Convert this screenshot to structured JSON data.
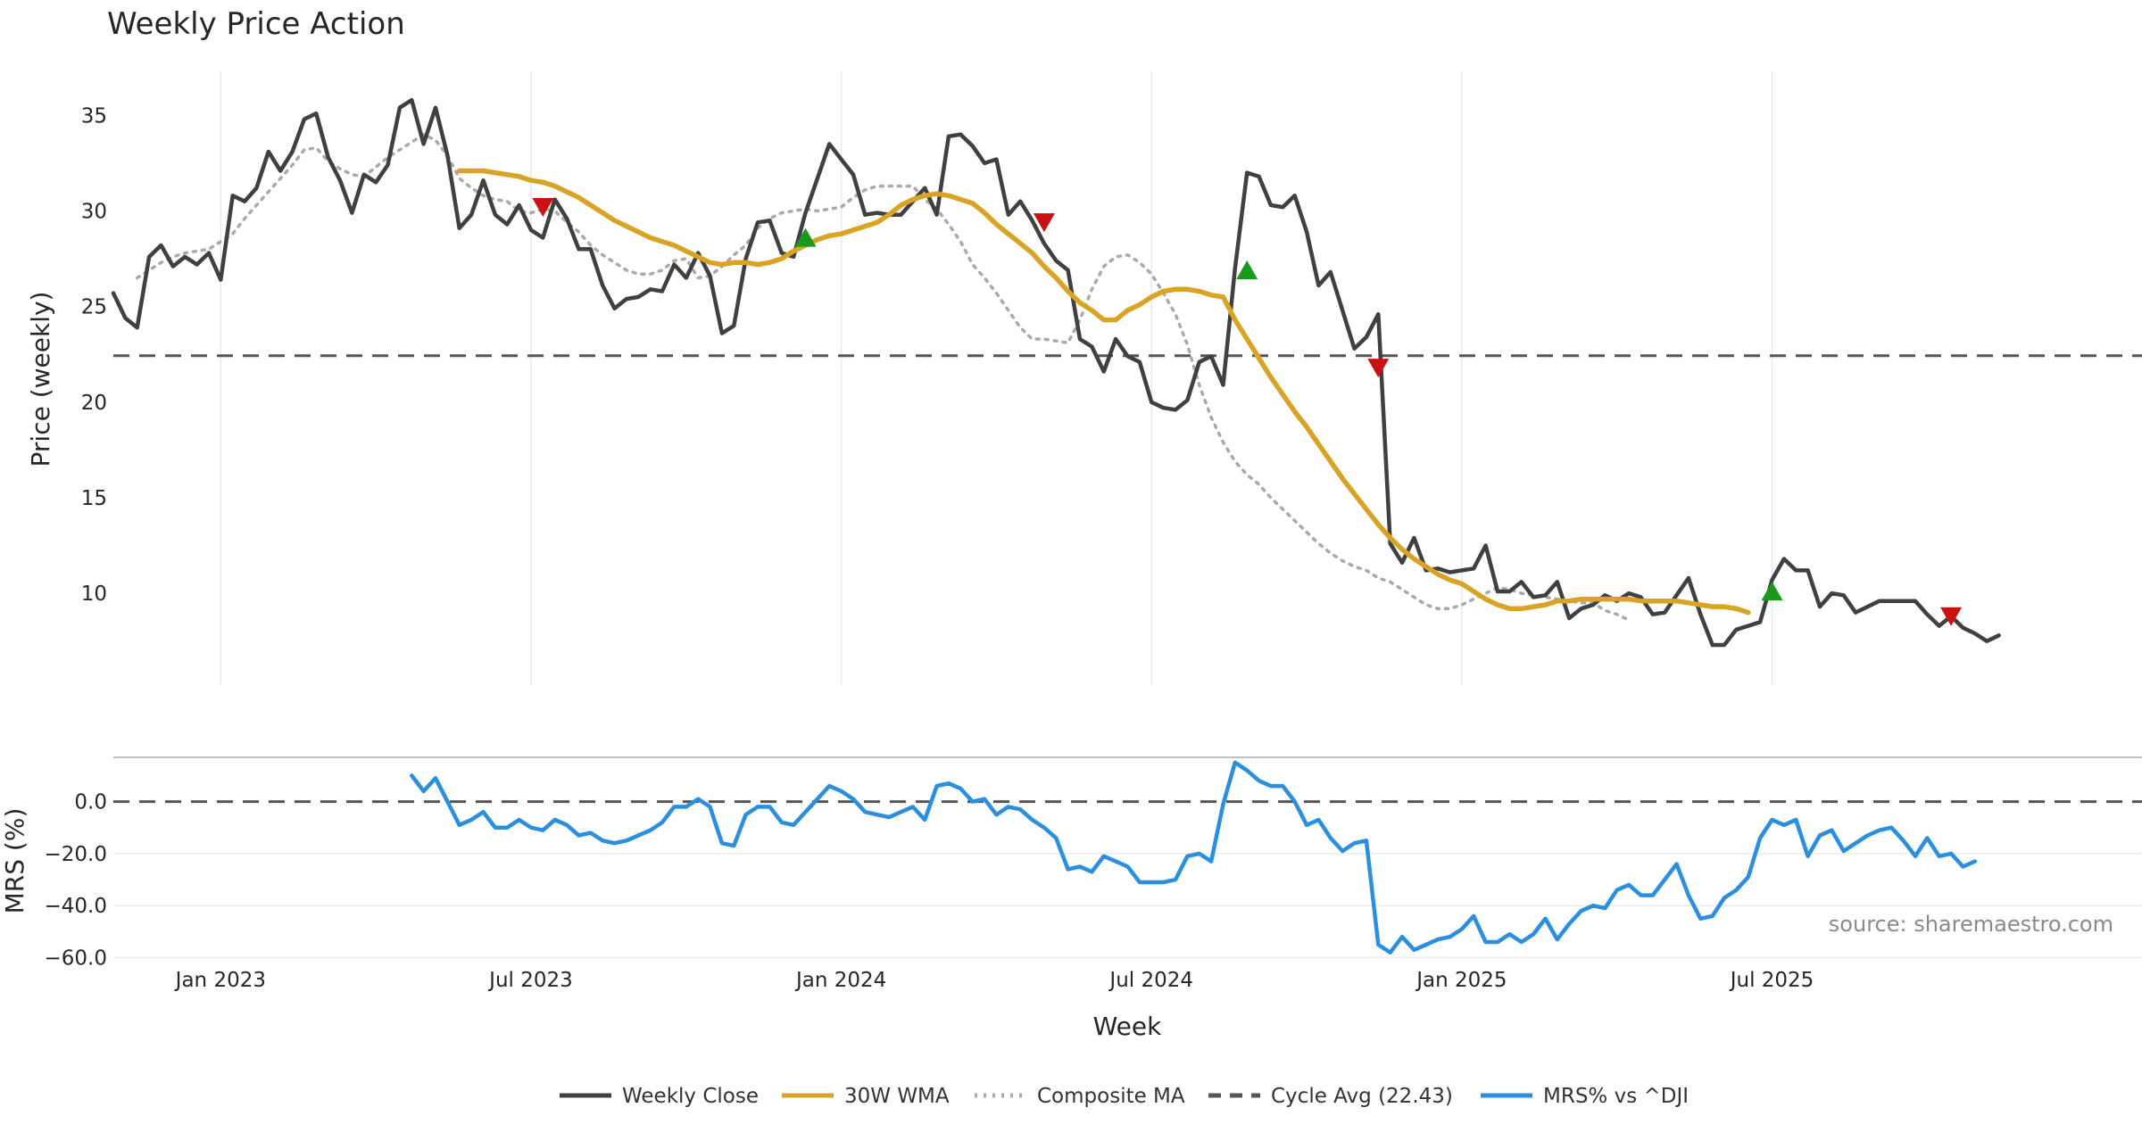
{
  "chart_data": [
    {
      "id": "price",
      "type": "line",
      "title": "Weekly Price Action",
      "ylabel": "Price (weekly)",
      "ylim": [
        5.2,
        37.3
      ],
      "yticks": [
        10,
        15,
        20,
        25,
        30,
        35
      ],
      "ytick_labels": [
        "10",
        "15",
        "20",
        "25",
        "30",
        "35"
      ],
      "week_range": [
        0,
        170
      ],
      "xgrid_weeks": [
        9,
        35,
        61,
        87,
        113,
        139
      ],
      "series": [
        {
          "name": "Weekly Close",
          "color": "#404040",
          "style": "solid",
          "values": [
            25.7,
            24.4,
            23.9,
            27.6,
            28.2,
            27.1,
            27.6,
            27.2,
            27.8,
            26.4,
            30.8,
            30.5,
            31.2,
            33.1,
            32.1,
            33.1,
            34.8,
            35.1,
            32.8,
            31.6,
            29.9,
            31.9,
            31.5,
            32.4,
            35.4,
            35.8,
            33.5,
            35.4,
            32.9,
            29.1,
            29.8,
            31.6,
            29.8,
            29.3,
            30.3,
            29.0,
            28.6,
            30.6,
            29.6,
            28.0,
            28.0,
            26.1,
            24.9,
            25.4,
            25.5,
            25.9,
            25.8,
            27.2,
            26.5,
            27.8,
            26.6,
            23.6,
            24.0,
            27.5,
            29.4,
            29.5,
            27.8,
            27.6,
            29.9,
            31.7,
            33.5,
            32.7,
            31.9,
            29.8,
            29.9,
            29.8,
            29.8,
            30.5,
            31.2,
            29.8,
            33.9,
            34.0,
            33.4,
            32.5,
            32.7,
            29.8,
            30.5,
            29.5,
            28.3,
            27.4,
            26.9,
            23.3,
            22.9,
            21.6,
            23.3,
            22.4,
            22.1,
            20.0,
            19.7,
            19.6,
            20.1,
            22.1,
            22.4,
            20.9,
            27.0,
            32.0,
            31.8,
            30.3,
            30.2,
            30.8,
            28.9,
            26.1,
            26.8,
            24.8,
            22.8,
            23.4,
            24.6,
            12.6,
            11.6,
            12.9,
            11.2,
            11.3,
            11.1,
            11.2,
            11.3,
            12.5,
            10.1,
            10.1,
            10.6,
            9.8,
            9.9,
            10.6,
            8.7,
            9.2,
            9.4,
            9.9,
            9.6,
            10.0,
            9.8,
            8.9,
            9.0,
            9.9,
            10.8,
            8.9,
            7.3,
            7.3,
            8.1,
            8.3,
            8.5,
            10.7,
            11.8,
            11.2,
            11.2,
            9.3,
            10.0,
            9.9,
            9.0,
            9.3,
            9.6,
            9.6,
            9.6,
            9.6,
            8.9,
            8.3,
            8.8,
            8.2,
            7.9,
            7.5,
            7.8
          ]
        },
        {
          "name": "30W WMA",
          "color": "#d9a324",
          "style": "solid",
          "start_week": 29,
          "values": [
            32.1,
            32.1,
            32.1,
            32.0,
            31.9,
            31.8,
            31.6,
            31.5,
            31.3,
            31.0,
            30.7,
            30.3,
            29.9,
            29.5,
            29.2,
            28.9,
            28.6,
            28.4,
            28.2,
            27.9,
            27.6,
            27.3,
            27.2,
            27.3,
            27.3,
            27.2,
            27.3,
            27.5,
            27.9,
            28.2,
            28.5,
            28.7,
            28.8,
            29.0,
            29.2,
            29.4,
            29.8,
            30.3,
            30.6,
            30.8,
            30.9,
            30.8,
            30.6,
            30.4,
            29.9,
            29.3,
            28.8,
            28.3,
            27.8,
            27.1,
            26.5,
            25.8,
            25.2,
            24.8,
            24.3,
            24.3,
            24.8,
            25.1,
            25.5,
            25.8,
            25.9,
            25.9,
            25.8,
            25.6,
            25.5,
            24.3,
            23.3,
            22.3,
            21.3,
            20.4,
            19.5,
            18.7,
            17.8,
            16.9,
            16.0,
            15.2,
            14.4,
            13.6,
            12.9,
            12.3,
            11.8,
            11.4,
            11.0,
            10.7,
            10.5,
            10.1,
            9.7,
            9.4,
            9.2,
            9.2,
            9.3,
            9.4,
            9.6,
            9.6,
            9.7,
            9.7,
            9.7,
            9.7,
            9.7,
            9.6,
            9.6,
            9.6,
            9.6,
            9.5,
            9.4,
            9.3,
            9.3,
            9.2,
            9.0
          ]
        },
        {
          "name": "Composite MA",
          "color": "#aaaaaa",
          "style": "dotted",
          "start_week": 2,
          "values": [
            26.5,
            26.9,
            27.3,
            27.6,
            27.8,
            27.9,
            28.0,
            28.4,
            28.8,
            29.6,
            30.3,
            31.0,
            31.7,
            32.4,
            33.2,
            33.3,
            32.6,
            32.2,
            31.9,
            31.8,
            32.3,
            32.8,
            33.2,
            33.6,
            34.0,
            33.7,
            32.9,
            31.7,
            31.2,
            30.8,
            30.6,
            30.5,
            30.0,
            29.9,
            30.1,
            30.0,
            29.4,
            28.9,
            28.2,
            27.7,
            27.3,
            26.9,
            26.7,
            26.7,
            26.9,
            27.4,
            27.5,
            26.5,
            26.6,
            27.1,
            27.7,
            28.2,
            29.1,
            29.6,
            29.9,
            30.0,
            30.1,
            30.0,
            30.1,
            30.2,
            30.7,
            31.1,
            31.3,
            31.3,
            31.3,
            31.3,
            30.6,
            30.1,
            29.3,
            28.4,
            27.2,
            26.5,
            25.7,
            24.8,
            23.9,
            23.3,
            23.3,
            23.2,
            23.1,
            24.3,
            25.9,
            27.1,
            27.6,
            27.7,
            27.3,
            26.7,
            25.7,
            24.6,
            23.0,
            20.9,
            19.2,
            17.9,
            16.9,
            16.2,
            15.7,
            15.0,
            14.4,
            13.8,
            13.2,
            12.6,
            12.1,
            11.7,
            11.4,
            11.2,
            10.8,
            10.6,
            10.2,
            9.8,
            9.4,
            9.2,
            9.2,
            9.4,
            9.7,
            10.0,
            10.3,
            10.2,
            10.0,
            9.9,
            9.8,
            9.7,
            9.6,
            9.5,
            9.5,
            9.1,
            8.9,
            8.6
          ]
        },
        {
          "name": "Cycle Avg (22.43)",
          "color": "#555555",
          "style": "dashed",
          "value": 22.43
        }
      ],
      "markers": [
        {
          "type": "sell",
          "week": 36,
          "value": 30.3,
          "color": "#cc1111"
        },
        {
          "type": "buy",
          "week": 58,
          "value": 28.5,
          "color": "#1a9a1a"
        },
        {
          "type": "sell",
          "week": 78,
          "value": 29.5,
          "color": "#cc1111"
        },
        {
          "type": "buy",
          "week": 95,
          "value": 26.8,
          "color": "#1a9a1a"
        },
        {
          "type": "sell",
          "week": 106,
          "value": 21.9,
          "color": "#cc1111"
        },
        {
          "type": "buy",
          "week": 139,
          "value": 10.0,
          "color": "#1a9a1a"
        },
        {
          "type": "sell",
          "week": 154,
          "value": 8.9,
          "color": "#cc1111"
        }
      ]
    },
    {
      "id": "mrs",
      "type": "line",
      "ylabel": "MRS (%)",
      "xlabel": "Week",
      "ylim": [
        -60.5,
        17
      ],
      "yticks": [
        0,
        -20,
        -40,
        -60
      ],
      "ytick_labels": [
        "0.0",
        "−20.0",
        "−40.0",
        "−60.0"
      ],
      "xticks": [
        {
          "week": 9,
          "label": "Jan 2023"
        },
        {
          "week": 35,
          "label": "Jul 2023"
        },
        {
          "week": 61,
          "label": "Jan 2024"
        },
        {
          "week": 87,
          "label": "Jul 2024"
        },
        {
          "week": 113,
          "label": "Jan 2025"
        },
        {
          "week": 139,
          "label": "Jul 2025"
        }
      ],
      "source": "source: sharemaestro.com",
      "series": [
        {
          "name": "MRS% vs ^DJI",
          "color": "#2b8fe0",
          "style": "solid",
          "start_week": 25,
          "values": [
            10.0,
            4.0,
            9.0,
            0.0,
            -9.0,
            -7.0,
            -4.0,
            -10.0,
            -10.0,
            -7.0,
            -10.0,
            -11.0,
            -7.0,
            -9.0,
            -13.0,
            -12.0,
            -15.0,
            -16.0,
            -15.0,
            -13.0,
            -11.0,
            -8.0,
            -2.0,
            -2.0,
            1.0,
            -2.0,
            -16.0,
            -17.0,
            -5.0,
            -2.0,
            -2.0,
            -8.0,
            -9.0,
            -4.0,
            1.0,
            6.0,
            4.0,
            1.0,
            -4.0,
            -5.0,
            -6.0,
            -4.0,
            -2.0,
            -7.0,
            6.0,
            7.0,
            5.0,
            0.0,
            1.0,
            -5.0,
            -2.0,
            -3.0,
            -7.0,
            -10.0,
            -14.0,
            -26.0,
            -25.0,
            -27.0,
            -21.0,
            -23.0,
            -25.0,
            -31.0,
            -31.0,
            -31.0,
            -30.0,
            -21.0,
            -20.0,
            -23.0,
            -1.0,
            15.0,
            12.0,
            8.0,
            6.0,
            6.0,
            0.0,
            -9.0,
            -7.0,
            -14.0,
            -19.0,
            -16.0,
            -15.0,
            -55.0,
            -58.0,
            -52.0,
            -57.0,
            -55.0,
            -53.0,
            -52.0,
            -49.0,
            -44.0,
            -54.0,
            -54.0,
            -51.0,
            -54.0,
            -51.0,
            -45.0,
            -53.0,
            -47.0,
            -42.0,
            -40.0,
            -41.0,
            -34.0,
            -32.0,
            -36.0,
            -36.0,
            -30.0,
            -24.0,
            -36.0,
            -45.0,
            -44.0,
            -37.0,
            -34.0,
            -29.0,
            -14.0,
            -7.0,
            -9.0,
            -7.0,
            -21.0,
            -13.0,
            -11.0,
            -19.0,
            -16.0,
            -13.0,
            -11.0,
            -10.0,
            -15.0,
            -21.0,
            -14.0,
            -21.0,
            -20.0,
            -25.0,
            -23.0
          ]
        },
        {
          "name": "zero-line",
          "color": "#555555",
          "style": "dashed",
          "value": 0
        }
      ]
    }
  ],
  "legend": [
    {
      "label": "Weekly Close",
      "color": "#404040",
      "style": "solid"
    },
    {
      "label": "30W WMA",
      "color": "#d9a324",
      "style": "solid"
    },
    {
      "label": "Composite MA",
      "color": "#aaaaaa",
      "style": "dotted"
    },
    {
      "label": "Cycle Avg (22.43)",
      "color": "#555555",
      "style": "dashed"
    },
    {
      "label": "MRS% vs ^DJI",
      "color": "#2b8fe0",
      "style": "solid"
    }
  ]
}
